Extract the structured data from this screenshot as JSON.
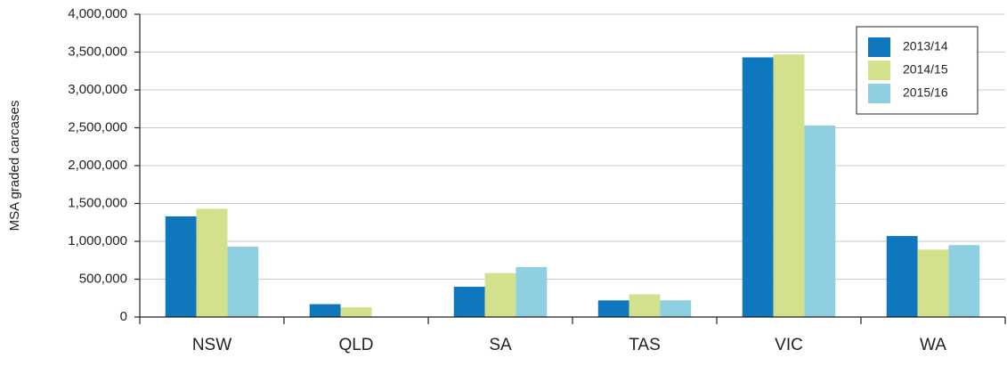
{
  "chart_data": {
    "type": "bar",
    "y_label": "MSA graded carcases",
    "categories": [
      "NSW",
      "QLD",
      "SA",
      "TAS",
      "VIC",
      "WA"
    ],
    "series": [
      {
        "name": "2013/14",
        "color": "#0e77bd",
        "values": [
          1330000,
          170000,
          400000,
          220000,
          3430000,
          1070000
        ]
      },
      {
        "name": "2014/15",
        "color": "#d3e08c",
        "values": [
          1430000,
          130000,
          580000,
          300000,
          3470000,
          890000
        ]
      },
      {
        "name": "2015/16",
        "color": "#8ecfe2",
        "values": [
          930000,
          0,
          660000,
          220000,
          2530000,
          950000
        ]
      }
    ],
    "ylim": [
      0,
      4000000
    ],
    "yticks": [
      0,
      {
        "value": 500000,
        "label": "500,000"
      },
      {
        "value": 1000000,
        "label": "1,000,000"
      },
      {
        "value": 1500000,
        "label": "1,500,000"
      },
      {
        "value": 2000000,
        "label": "2,000,000"
      },
      {
        "value": 2500000,
        "label": "2,500,000"
      },
      {
        "value": 3000000,
        "label": "3,000,000"
      },
      {
        "value": 3500000,
        "label": "3,500,000"
      },
      {
        "value": 4000000,
        "label": "4,000,000"
      }
    ],
    "grid": true,
    "legend": "upper right"
  }
}
